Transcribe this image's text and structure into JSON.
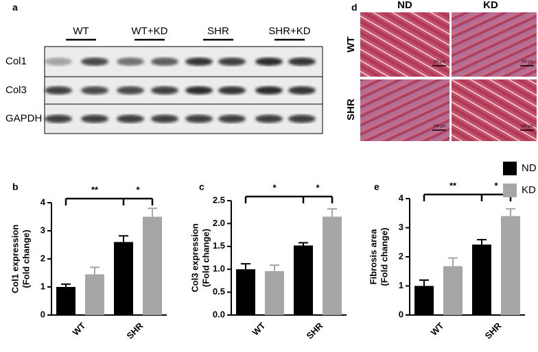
{
  "panel_labels": [
    "a",
    "b",
    "c",
    "d",
    "e"
  ],
  "blot": {
    "groups": [
      "WT",
      "WT+KD",
      "SHR",
      "SHR+KD"
    ],
    "rows": [
      "Col1",
      "Col3",
      "GAPDH"
    ]
  },
  "histology": {
    "columns": [
      "ND",
      "KD"
    ],
    "rows": [
      "WT",
      "SHR"
    ],
    "scale_bar": "100 μm"
  },
  "chart_data": [
    {
      "type": "bar",
      "ylabel": [
        "Col1 expression",
        "(Fold change)"
      ],
      "categories": [
        "WT",
        "SHR"
      ],
      "series": [
        {
          "color": "#000000",
          "values": [
            1.0,
            2.6
          ],
          "errors": [
            0.1,
            0.22
          ]
        },
        {
          "color": "#a6a6a6",
          "values": [
            1.45,
            3.5
          ],
          "errors": [
            0.25,
            0.3
          ]
        }
      ],
      "ylim": [
        0,
        4
      ],
      "yticks": [
        0,
        1,
        2,
        3,
        4
      ],
      "significance": [
        "**",
        "*"
      ]
    },
    {
      "type": "bar",
      "ylabel": [
        "Col3 expression",
        "(Fold change)"
      ],
      "categories": [
        "WT",
        "SHR"
      ],
      "series": [
        {
          "color": "#000000",
          "values": [
            1.0,
            1.52
          ],
          "errors": [
            0.12,
            0.06
          ]
        },
        {
          "color": "#a6a6a6",
          "values": [
            0.96,
            2.15
          ],
          "errors": [
            0.13,
            0.17
          ]
        }
      ],
      "ylim": [
        0,
        2.5
      ],
      "yticks": [
        {
          "value": 0,
          "label": "0.0"
        },
        0.5,
        {
          "value": 1,
          "label": "1.0"
        },
        1.5,
        {
          "value": 2,
          "label": "2.0"
        },
        2.5
      ],
      "significance": [
        "*",
        "*"
      ]
    },
    {
      "type": "bar",
      "ylabel": [
        "Fibrosis area",
        "(Fold change)"
      ],
      "categories": [
        "WT",
        "SHR"
      ],
      "series": [
        {
          "name": "ND",
          "color": "#000000",
          "values": [
            1.0,
            2.42
          ],
          "errors": [
            0.2,
            0.17
          ]
        },
        {
          "name": "KD",
          "color": "#a6a6a6",
          "values": [
            1.68,
            3.4
          ],
          "errors": [
            0.28,
            0.25
          ]
        }
      ],
      "ylim": [
        0,
        4
      ],
      "yticks": [
        0,
        1,
        2,
        3,
        4
      ],
      "significance": [
        "**",
        "*"
      ],
      "legend": "right"
    }
  ]
}
